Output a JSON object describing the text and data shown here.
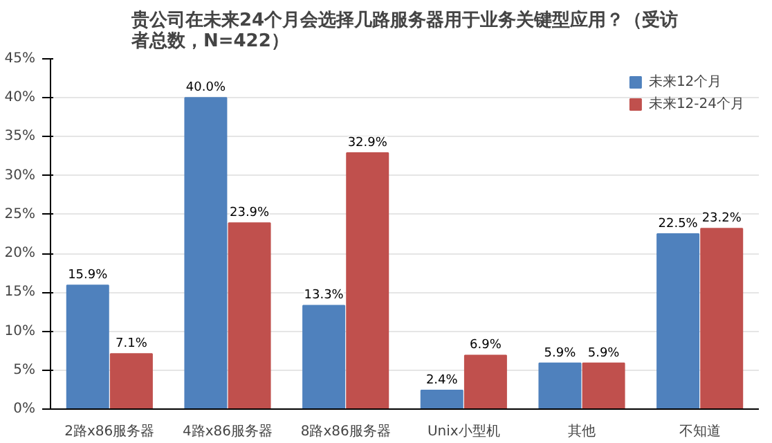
{
  "chart_data": {
    "type": "bar",
    "title": "贵公司在未来24个月会选择几路服务器用于业务关键型应用？（受访者总数，N=422）",
    "categories": [
      "2路x86服务器",
      "4路x86服务器",
      "8路x86服务器",
      "Unix小型机",
      "其他",
      "不知道"
    ],
    "series": [
      {
        "name": "未来12个月",
        "color": "#4f81bd",
        "values": [
          15.9,
          40.0,
          13.3,
          2.4,
          5.9,
          22.5
        ],
        "value_labels": [
          "15.9%",
          "40.0%",
          "13.3%",
          "2.4%",
          "5.9%",
          "22.5%"
        ]
      },
      {
        "name": "未来12-24个月",
        "color": "#c0504d",
        "values": [
          7.1,
          23.9,
          32.9,
          6.9,
          5.9,
          23.2
        ],
        "value_labels": [
          "7.1%",
          "23.9%",
          "32.9%",
          "6.9%",
          "5.9%",
          "23.2%"
        ]
      }
    ],
    "ylim": [
      0,
      45
    ],
    "yticks": [
      {
        "value": 0,
        "label": "0%"
      },
      {
        "value": 5,
        "label": "5%"
      },
      {
        "value": 10,
        "label": "10%"
      },
      {
        "value": 15,
        "label": "15%"
      },
      {
        "value": 20,
        "label": "20%"
      },
      {
        "value": 25,
        "label": "25%"
      },
      {
        "value": 30,
        "label": "30%"
      },
      {
        "value": 35,
        "label": "35%"
      },
      {
        "value": 40,
        "label": "40%"
      },
      {
        "value": 45,
        "label": "45%"
      }
    ],
    "grid": "y",
    "legend": "top right"
  }
}
